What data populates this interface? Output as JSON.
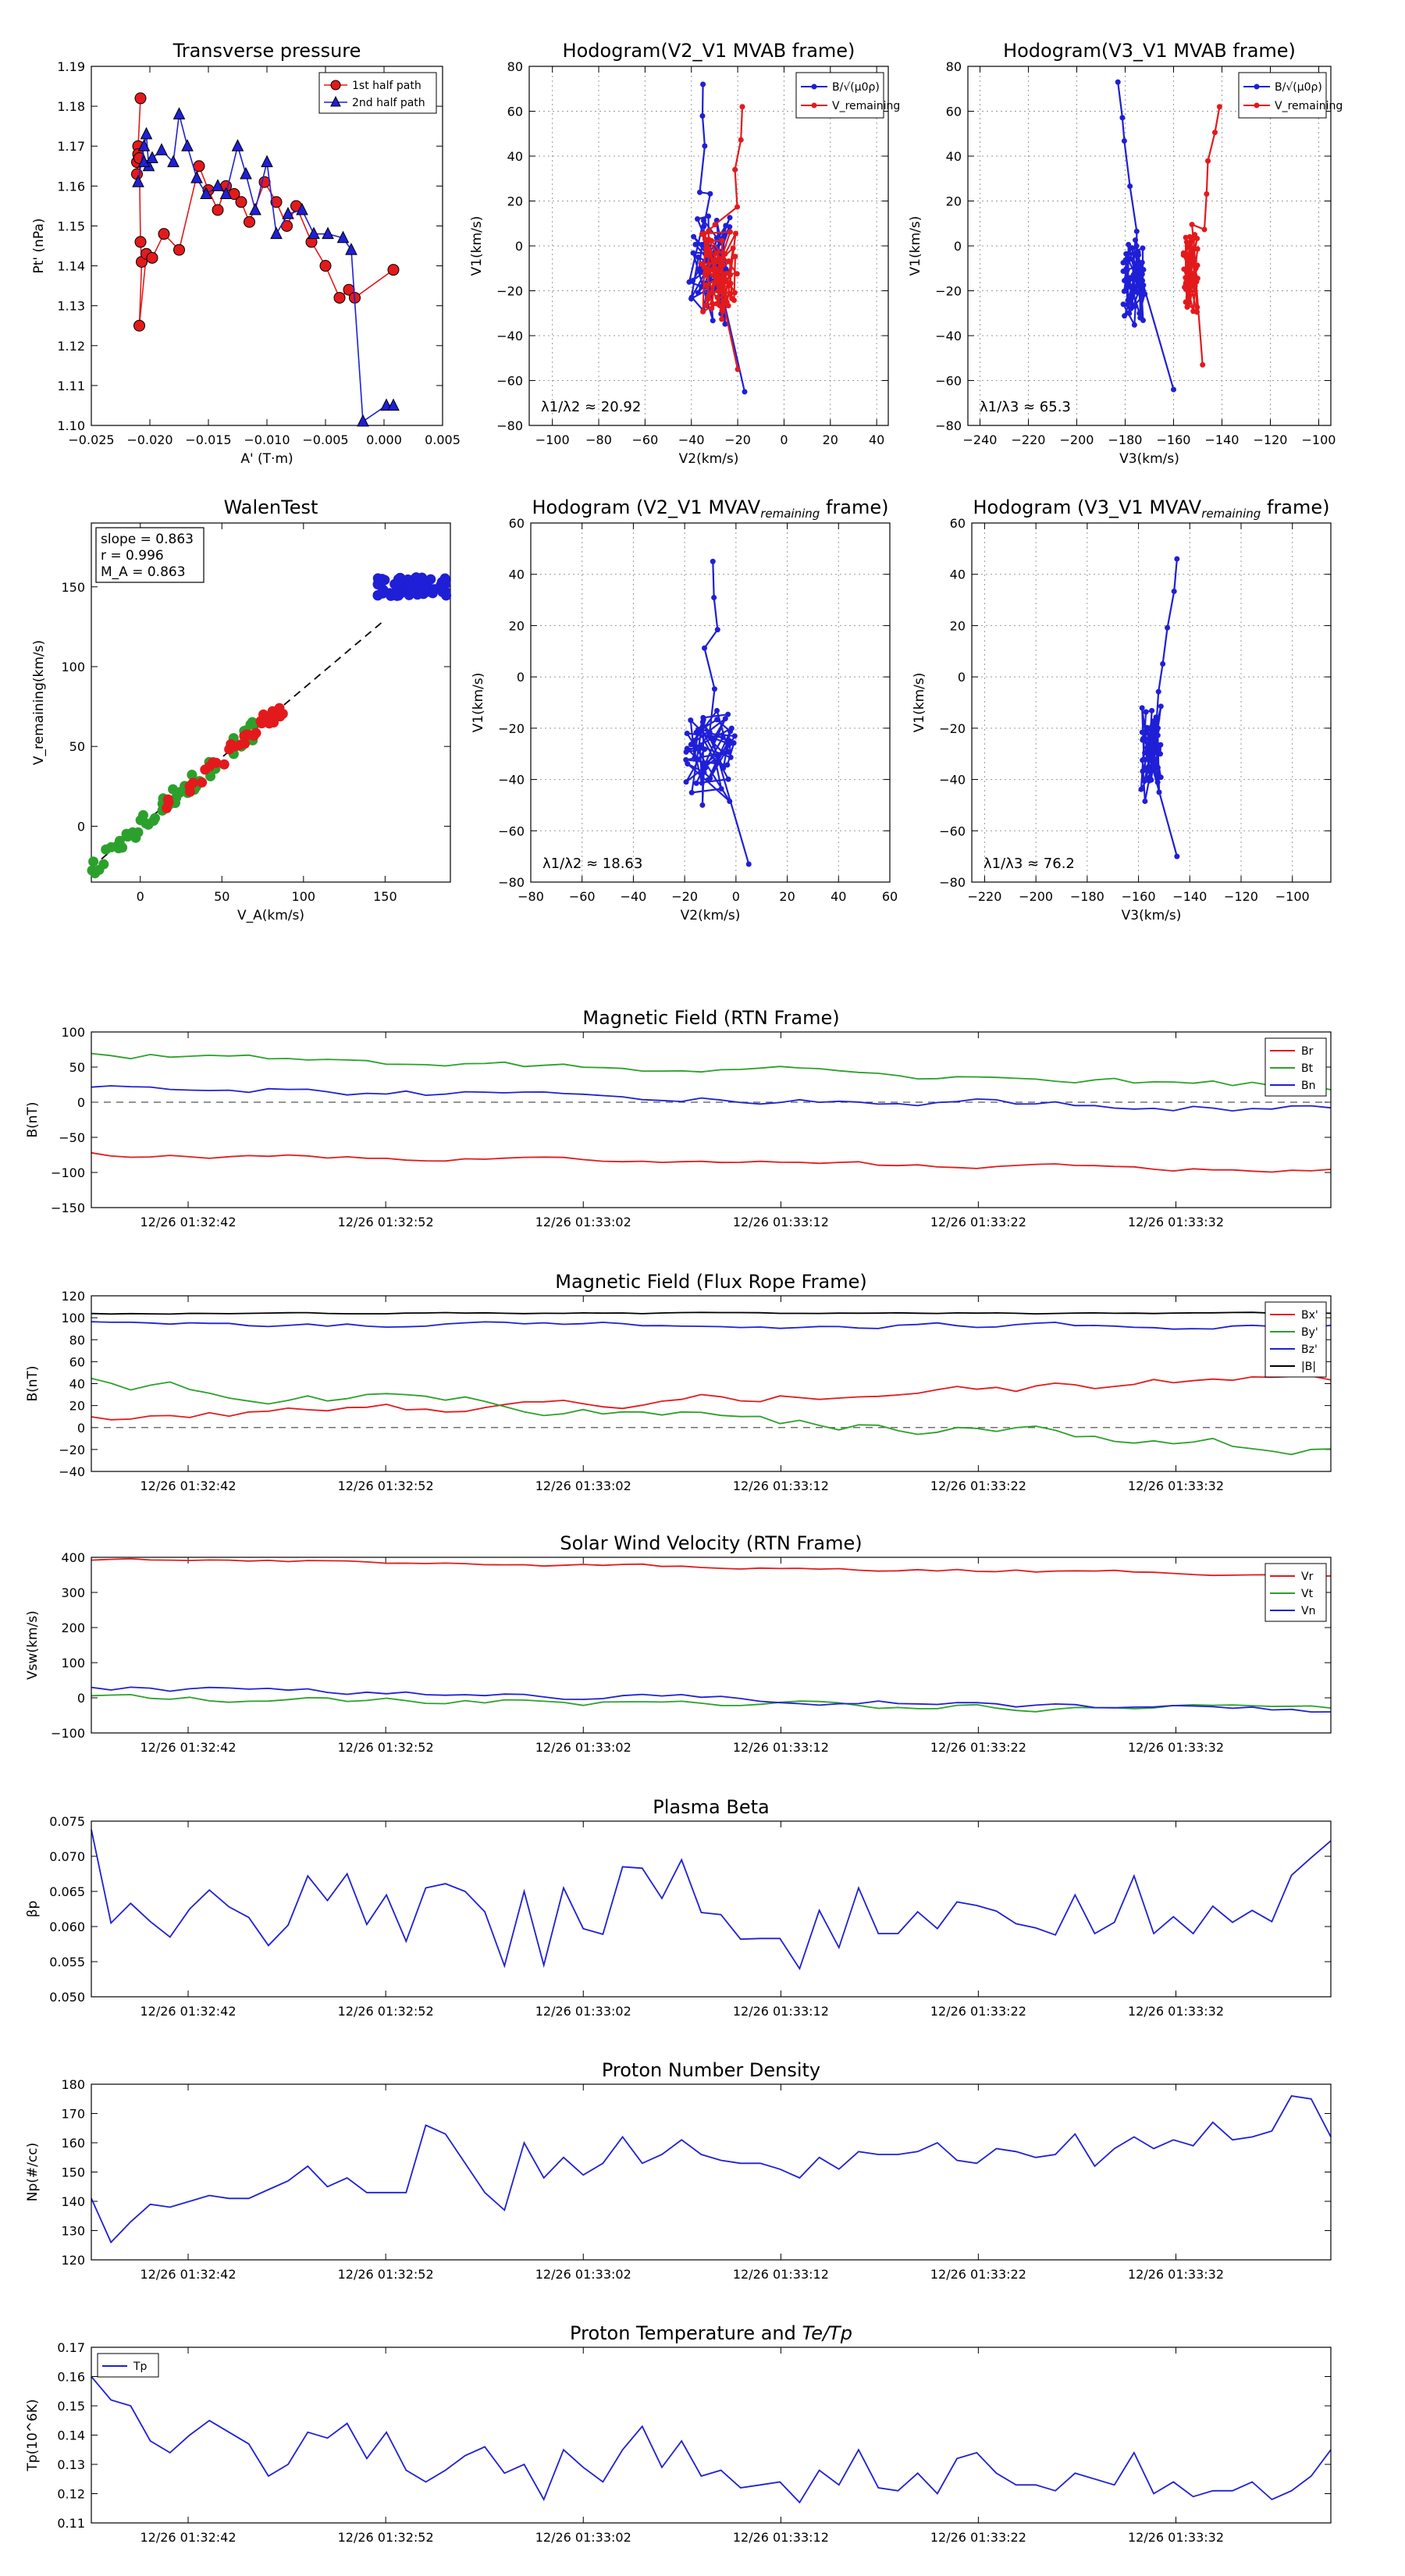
{
  "colors": {
    "red": "#e31a1c",
    "green": "#2ca02c",
    "blue": "#1f1fd6",
    "black": "#000000",
    "grid": "#999999"
  },
  "chart_data": [
    {
      "id": "transverse",
      "type": "line",
      "title": "Transverse pressure",
      "xlabel": "A' (T·m)",
      "ylabel": "Pt' (nPa)",
      "xlim": [
        -0.025,
        0.005
      ],
      "ylim": [
        1.1,
        1.19
      ],
      "xticks": [
        -0.025,
        -0.02,
        -0.015,
        -0.01,
        -0.005,
        0.0,
        0.005
      ],
      "xtick_labels": [
        "−0.025",
        "−0.020",
        "−0.015",
        "−0.010",
        "−0.005",
        "0.000",
        "0.005"
      ],
      "yticks": [
        1.1,
        1.11,
        1.12,
        1.13,
        1.14,
        1.15,
        1.16,
        1.17,
        1.18,
        1.19
      ],
      "ytick_labels": [
        "1.10",
        "1.11",
        "1.12",
        "1.13",
        "1.14",
        "1.15",
        "1.16",
        "1.17",
        "1.18",
        "1.19"
      ],
      "legend": [
        "1st half path",
        "2nd half path"
      ],
      "series": [
        {
          "name": "1st half path",
          "color": "red",
          "marker": "circle",
          "x": [
            -0.0208,
            -0.021,
            -0.0211,
            -0.0211,
            -0.021,
            -0.0209,
            -0.0208,
            -0.0207,
            -0.0209,
            -0.0203,
            -0.0198,
            -0.0188,
            -0.0175,
            -0.0158,
            -0.015,
            -0.0142,
            -0.0135,
            -0.0128,
            -0.0122,
            -0.0115,
            -0.0102,
            -0.0092,
            -0.0083,
            -0.0075,
            -0.0062,
            -0.005,
            -0.0038,
            -0.003,
            -0.0025,
            0.0008
          ],
          "y": [
            1.182,
            1.17,
            1.166,
            1.163,
            1.168,
            1.167,
            1.146,
            1.141,
            1.125,
            1.143,
            1.142,
            1.148,
            1.144,
            1.165,
            1.159,
            1.154,
            1.16,
            1.158,
            1.156,
            1.151,
            1.161,
            1.156,
            1.15,
            1.155,
            1.146,
            1.14,
            1.132,
            1.134,
            1.132,
            1.139
          ]
        },
        {
          "name": "2nd half path",
          "color": "blue",
          "marker": "triangle",
          "x": [
            -0.021,
            -0.0205,
            -0.0203,
            -0.0201,
            -0.0205,
            -0.0198,
            -0.019,
            -0.018,
            -0.0175,
            -0.0168,
            -0.016,
            -0.0152,
            -0.0142,
            -0.0135,
            -0.0125,
            -0.0118,
            -0.011,
            -0.01,
            -0.0092,
            -0.0082,
            -0.007,
            -0.006,
            -0.0048,
            -0.0035,
            -0.0028,
            -0.0018,
            0.0002,
            0.0008
          ],
          "y": [
            1.161,
            1.17,
            1.173,
            1.165,
            1.166,
            1.167,
            1.169,
            1.166,
            1.178,
            1.17,
            1.162,
            1.158,
            1.16,
            1.158,
            1.17,
            1.163,
            1.154,
            1.166,
            1.148,
            1.153,
            1.154,
            1.148,
            1.148,
            1.147,
            1.144,
            1.101,
            1.105,
            1.105
          ]
        }
      ]
    },
    {
      "id": "hodo_v2_mvab",
      "type": "line",
      "title": "Hodogram(V2_V1 MVAB frame)",
      "xlabel": "V2(km/s)",
      "ylabel": "V1(km/s)",
      "xlim": [
        -110,
        45
      ],
      "ylim": [
        -80,
        80
      ],
      "xticks": [
        -100,
        -80,
        -60,
        -40,
        -20,
        0,
        20,
        40
      ],
      "yticks": [
        -80,
        -60,
        -40,
        -20,
        0,
        20,
        40,
        60,
        80
      ],
      "legend": [
        "B/√(μ0ρ)",
        "V_remaining"
      ],
      "annotation": "λ1/λ2 ≈ 20.92",
      "grid": true,
      "series": [
        {
          "name": "B/√(μ0ρ)",
          "color": "blue",
          "seed": 3,
          "center": [
            -32,
            -10
          ],
          "spread": [
            9,
            26
          ],
          "start": [
            -35,
            72
          ],
          "end": [
            -17,
            -65
          ],
          "n": 60
        },
        {
          "name": "V_remaining",
          "color": "red",
          "seed": 7,
          "center": [
            -28,
            -15
          ],
          "spread": [
            8,
            24
          ],
          "start": [
            -18,
            62
          ],
          "end": [
            -20,
            -55
          ],
          "n": 60
        }
      ]
    },
    {
      "id": "hodo_v3_mvab",
      "type": "line",
      "title": "Hodogram(V3_V1 MVAB frame)",
      "xlabel": "V3(km/s)",
      "ylabel": "V1(km/s)",
      "xlim": [
        -245,
        -95
      ],
      "ylim": [
        -80,
        80
      ],
      "xticks": [
        -240,
        -220,
        -200,
        -180,
        -160,
        -140,
        -120,
        -100
      ],
      "yticks": [
        -80,
        -60,
        -40,
        -20,
        0,
        20,
        40,
        60,
        80
      ],
      "legend": [
        "B/√(μ0ρ)",
        "V_remaining"
      ],
      "annotation": "λ1/λ3 ≈ 65.3",
      "grid": true,
      "series": [
        {
          "name": "B/√(μ0ρ)",
          "color": "blue",
          "seed": 11,
          "center": [
            -176,
            -15
          ],
          "spread": [
            5,
            24
          ],
          "start": [
            -183,
            73
          ],
          "end": [
            -160,
            -64
          ],
          "n": 60
        },
        {
          "name": "V_remaining",
          "color": "red",
          "seed": 13,
          "center": [
            -153,
            -12
          ],
          "spread": [
            3,
            22
          ],
          "start": [
            -141,
            62
          ],
          "end": [
            -148,
            -53
          ],
          "n": 60
        }
      ]
    },
    {
      "id": "walen",
      "type": "scatter",
      "title": "WalenTest",
      "xlabel": "V_A(km/s)",
      "ylabel": "V_remaining(km/s)",
      "xlim": [
        -30,
        190
      ],
      "ylim": [
        -35,
        190
      ],
      "xticks": [
        0,
        50,
        100,
        150
      ],
      "yticks": [
        0,
        50,
        100,
        150
      ],
      "stats": [
        "slope = 0.863",
        "r = 0.996",
        "M_A = 0.863"
      ],
      "fit": {
        "slope": 0.863,
        "intercept": 0
      },
      "clusters": [
        {
          "color": "green",
          "seed": 21,
          "x_range": [
            -30,
            70
          ],
          "n": 60
        },
        {
          "color": "red",
          "seed": 23,
          "x_range": [
            15,
            88
          ],
          "n": 35
        },
        {
          "color": "blue",
          "seed": 25,
          "x_range": [
            145,
            188
          ],
          "n": 70,
          "y_center": 150
        }
      ]
    },
    {
      "id": "hodo_v2_mvav",
      "type": "line",
      "title": "Hodogram (V2_V1 MVAV_remaining frame)",
      "xlabel": "V2(km/s)",
      "ylabel": "V1(km/s)",
      "xlim": [
        -80,
        60
      ],
      "ylim": [
        -80,
        60
      ],
      "xticks": [
        -80,
        -60,
        -40,
        -20,
        0,
        20,
        40,
        60
      ],
      "yticks": [
        -80,
        -60,
        -40,
        -20,
        0,
        20,
        40,
        60
      ],
      "annotation": "λ1/λ2 ≈ 18.63",
      "grid": true,
      "series": [
        {
          "name": "hodogram",
          "color": "blue",
          "seed": 31,
          "center": [
            -10,
            -30
          ],
          "spread": [
            10,
            22
          ],
          "start": [
            -9,
            45
          ],
          "end": [
            5,
            -73
          ],
          "n": 60
        }
      ]
    },
    {
      "id": "hodo_v3_mvav",
      "type": "line",
      "title": "Hodogram (V3_V1 MVAV_remaining frame)",
      "xlabel": "V3(km/s)",
      "ylabel": "V1(km/s)",
      "xlim": [
        -225,
        -85
      ],
      "ylim": [
        -80,
        60
      ],
      "xticks": [
        -220,
        -200,
        -180,
        -160,
        -140,
        -120,
        -100
      ],
      "yticks": [
        -80,
        -60,
        -40,
        -20,
        0,
        20,
        40,
        60
      ],
      "annotation": "λ1/λ3 ≈ 76.2",
      "grid": true,
      "series": [
        {
          "name": "hodogram",
          "color": "blue",
          "seed": 37,
          "center": [
            -155,
            -30
          ],
          "spread": [
            4,
            20
          ],
          "start": [
            -145,
            46
          ],
          "end": [
            -145,
            -70
          ],
          "n": 60
        }
      ]
    }
  ],
  "timeseries": [
    {
      "id": "bfield_rtn",
      "title": "Magnetic Field (RTN Frame)",
      "ylabel": "B(nT)",
      "ylim": [
        -150,
        100
      ],
      "yticks": [
        -150,
        -100,
        -50,
        0,
        50,
        100
      ],
      "zero_line": true,
      "legend_pos": "top-right",
      "series": [
        {
          "name": "Br",
          "color": "red",
          "seed": 41,
          "start": -75,
          "end": -98,
          "noise": 3
        },
        {
          "name": "Bt",
          "color": "green",
          "seed": 43,
          "start": 70,
          "end": 22,
          "noise": 5
        },
        {
          "name": "Bn",
          "color": "blue",
          "seed": 47,
          "start": 20,
          "end": -10,
          "noise": 5
        }
      ]
    },
    {
      "id": "bfield_fr",
      "title": "Magnetic Field (Flux Rope Frame)",
      "ylabel": "B(nT)",
      "ylim": [
        -40,
        120
      ],
      "yticks": [
        -40,
        -20,
        0,
        20,
        40,
        60,
        80,
        100,
        120
      ],
      "zero_line": true,
      "legend_pos": "top-right",
      "series": [
        {
          "name": "Bx'",
          "color": "red",
          "seed": 51,
          "start": 8,
          "end": 45,
          "noise": 4
        },
        {
          "name": "By'",
          "color": "green",
          "seed": 53,
          "start": 40,
          "end": -20,
          "noise": 5
        },
        {
          "name": "Bz'",
          "color": "blue",
          "seed": 57,
          "start": 95,
          "end": 92,
          "noise": 2
        },
        {
          "name": "|B|",
          "color": "black",
          "seed": 59,
          "start": 104,
          "end": 104,
          "noise": 0.5
        }
      ]
    },
    {
      "id": "vsw",
      "title": "Solar Wind Velocity (RTN Frame)",
      "ylabel": "Vsw(km/s)",
      "ylim": [
        -100,
        400
      ],
      "yticks": [
        -100,
        0,
        100,
        200,
        300,
        400
      ],
      "zero_line": false,
      "legend_pos": "top-right",
      "series": [
        {
          "name": "Vr",
          "color": "red",
          "seed": 61,
          "start": 395,
          "end": 350,
          "noise": 4
        },
        {
          "name": "Vt",
          "color": "green",
          "seed": 63,
          "start": 0,
          "end": -35,
          "noise": 8
        },
        {
          "name": "Vn",
          "color": "blue",
          "seed": 67,
          "start": 30,
          "end": -35,
          "noise": 8
        }
      ]
    },
    {
      "id": "beta",
      "title": "Plasma Beta",
      "ylabel": "βp",
      "ylim": [
        0.05,
        0.075
      ],
      "yticks": [
        0.05,
        0.055,
        0.06,
        0.065,
        0.07,
        0.075
      ],
      "zero_line": false,
      "legend": false,
      "series": [
        {
          "name": "beta",
          "color": "blue",
          "values": [
            0.0738,
            0.0605,
            0.0633,
            0.0607,
            0.0585,
            0.0625,
            0.0652,
            0.0628,
            0.0613,
            0.0573,
            0.0602,
            0.0672,
            0.0637,
            0.0675,
            0.0603,
            0.0645,
            0.0579,
            0.0655,
            0.0661,
            0.065,
            0.0621,
            0.0544,
            0.065,
            0.0545,
            0.0655,
            0.0597,
            0.0589,
            0.0685,
            0.0683,
            0.064,
            0.0695,
            0.062,
            0.0617,
            0.0582,
            0.0583,
            0.0583,
            0.054,
            0.0623,
            0.057,
            0.0655,
            0.059,
            0.059,
            0.0621,
            0.0597,
            0.0635,
            0.063,
            0.0622,
            0.0604,
            0.0598,
            0.0588,
            0.0645,
            0.059,
            0.0606,
            0.0672,
            0.059,
            0.0614,
            0.059,
            0.0629,
            0.0606,
            0.0623,
            0.0607,
            0.0673,
            0.0698,
            0.0722
          ]
        }
      ]
    },
    {
      "id": "np",
      "title": "Proton Number Density",
      "ylabel": "Np(#/cc)",
      "ylim": [
        120,
        180
      ],
      "yticks": [
        120,
        130,
        140,
        150,
        160,
        170,
        180
      ],
      "zero_line": false,
      "legend": false,
      "series": [
        {
          "name": "Np",
          "color": "blue",
          "values": [
            141,
            126,
            133,
            139,
            138,
            140,
            142,
            141,
            141,
            144,
            147,
            152,
            145,
            148,
            143,
            143,
            143,
            166,
            163,
            153,
            143,
            137,
            160,
            148,
            155,
            149,
            153,
            162,
            153,
            156,
            161,
            156,
            154,
            153,
            153,
            151,
            148,
            155,
            151,
            157,
            156,
            156,
            157,
            160,
            154,
            153,
            158,
            157,
            155,
            156,
            163,
            152,
            158,
            162,
            158,
            161,
            159,
            167,
            161,
            162,
            164,
            176,
            175,
            162
          ]
        }
      ]
    },
    {
      "id": "tp",
      "title": "Proton Temperature and Te/Tp",
      "ylabel": "Tp(10^6K)",
      "ylim": [
        0.11,
        0.17
      ],
      "yticks": [
        0.11,
        0.12,
        0.13,
        0.14,
        0.15,
        0.16,
        0.17
      ],
      "zero_line": false,
      "legend_pos": "top-left",
      "series": [
        {
          "name": "Tp",
          "color": "blue",
          "values": [
            0.16,
            0.152,
            0.15,
            0.138,
            0.134,
            0.14,
            0.145,
            0.141,
            0.137,
            0.126,
            0.13,
            0.141,
            0.139,
            0.144,
            0.132,
            0.141,
            0.128,
            0.124,
            0.128,
            0.133,
            0.136,
            0.127,
            0.13,
            0.118,
            0.135,
            0.129,
            0.124,
            0.135,
            0.143,
            0.129,
            0.138,
            0.126,
            0.128,
            0.122,
            0.123,
            0.124,
            0.117,
            0.128,
            0.123,
            0.135,
            0.122,
            0.121,
            0.127,
            0.12,
            0.132,
            0.134,
            0.127,
            0.123,
            0.123,
            0.121,
            0.127,
            0.125,
            0.123,
            0.134,
            0.12,
            0.124,
            0.119,
            0.121,
            0.121,
            0.124,
            0.118,
            0.121,
            0.126,
            0.135
          ]
        }
      ]
    }
  ],
  "time_axis": {
    "n_points": 64,
    "tick_positions": [
      0.0781,
      0.2375,
      0.3969,
      0.5563,
      0.7156,
      0.875
    ],
    "tick_labels": [
      "12/26 01:32:42",
      "12/26 01:32:52",
      "12/26 01:33:02",
      "12/26 01:33:12",
      "12/26 01:33:22",
      "12/26 01:33:32"
    ]
  }
}
